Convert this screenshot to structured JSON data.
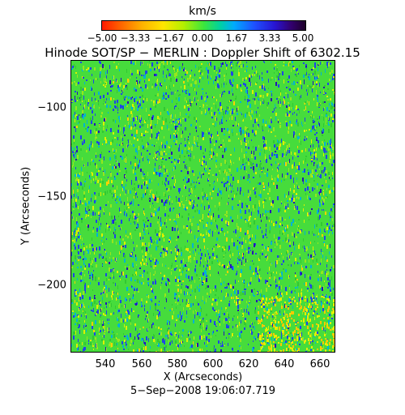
{
  "colorbar": {
    "unit": "km/s",
    "ticks": [
      "−5.00",
      "−3.33",
      "−1.67",
      "0.00",
      "1.67",
      "3.33",
      "5.00"
    ],
    "range": [
      -5.0,
      5.0
    ],
    "colors": [
      "#ff1a00",
      "#ffb400",
      "#b4f000",
      "#3ce63c",
      "#00aaff",
      "#2814d2",
      "#1e0028"
    ]
  },
  "title": "Hinode SOT/SP − MERLIN : Doppler Shift of 6302.15",
  "axes": {
    "x_label": "X (Arcseconds)",
    "y_label": "Y (Arcseconds)",
    "x_ticks": [
      "540",
      "560",
      "580",
      "600",
      "620",
      "640",
      "660"
    ],
    "y_ticks": [
      "−100",
      "−150",
      "−200"
    ],
    "x_range": [
      521,
      670
    ],
    "y_range": [
      -239,
      -76
    ]
  },
  "timestamp": "5−Sep−2008 19:06:07.719",
  "map_background": "#46dc3c"
}
